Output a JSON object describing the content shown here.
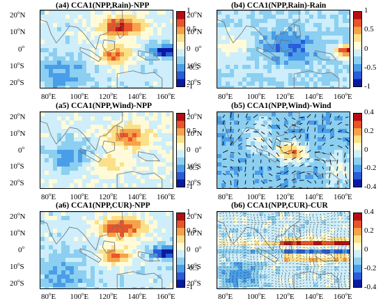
{
  "panels": [
    {
      "id": "a4",
      "title": "(a4) CCA1(NPP,Rain)-NPP",
      "colorbar": [
        "1",
        "0.5",
        "0",
        "-0.5",
        "-1"
      ],
      "field": "npp",
      "overlay": "none"
    },
    {
      "id": "b4",
      "title": "(b4) CCA1(NPP,Rain)-Rain",
      "colorbar": [
        "1",
        "0.5",
        "0",
        "-0.5",
        "-1"
      ],
      "field": "rain",
      "overlay": "none"
    },
    {
      "id": "a5",
      "title": "(a5) CCA1(NPP,Wind)-NPP",
      "colorbar": [
        "1",
        "0.5",
        "0",
        "-0.5",
        "-1"
      ],
      "field": "npp_weak",
      "overlay": "none"
    },
    {
      "id": "b5",
      "title": "(b5) CCA1(NPP,Wind)-Wind",
      "colorbar": [
        "0.4",
        "0.2",
        "0",
        "-0.2",
        "-0.4"
      ],
      "field": "wind",
      "overlay": "arrows"
    },
    {
      "id": "a6",
      "title": "(a6) CCA1(NPP,CUR)-NPP",
      "colorbar": [
        "1",
        "0.5",
        "0",
        "-0.5",
        "-1"
      ],
      "field": "npp",
      "overlay": "none"
    },
    {
      "id": "b6",
      "title": "(b6) CCA1(NPP,CUR)-CUR",
      "colorbar": [
        "0.4",
        "0.2",
        "0",
        "-0.2",
        "-0.4"
      ],
      "field": "cur",
      "overlay": "dense"
    }
  ],
  "lat_labels": [
    "20",
    "10",
    "0",
    "10",
    "20"
  ],
  "lat_suffix": [
    "N",
    "N",
    "",
    "S",
    "S"
  ],
  "lon_labels": [
    "80",
    "100",
    "120",
    "140",
    "160"
  ],
  "degree_symbol": "o",
  "lon_suffix": "E",
  "colormap": [
    "#0a1aa0",
    "#2b5bd8",
    "#4a9de8",
    "#8ccff0",
    "#cdeefa",
    "#fffbd8",
    "#fbe08a",
    "#f6a24a",
    "#e8552a",
    "#b40f14"
  ]
}
